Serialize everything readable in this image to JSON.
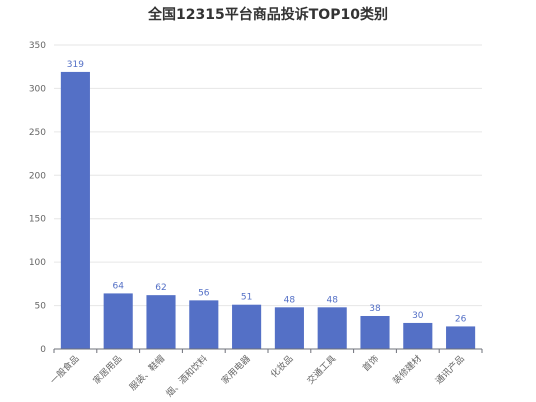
{
  "chart_data": {
    "type": "bar",
    "title": "全国12315平台商品投诉TOP10类别",
    "categories": [
      "一般食品",
      "家居用品",
      "服装、鞋帽",
      "烟、酒和饮料",
      "家用电器",
      "化妆品",
      "交通工具",
      "首饰",
      "装修建材",
      "通讯产品"
    ],
    "values": [
      319,
      64,
      62,
      56,
      51,
      48,
      48,
      38,
      30,
      26
    ],
    "ylim": [
      0,
      350
    ],
    "yticks": [
      0,
      50,
      100,
      150,
      200,
      250,
      300,
      350
    ],
    "grid": true,
    "bar_color": "#5470c6",
    "label_color": "#5470c6"
  }
}
